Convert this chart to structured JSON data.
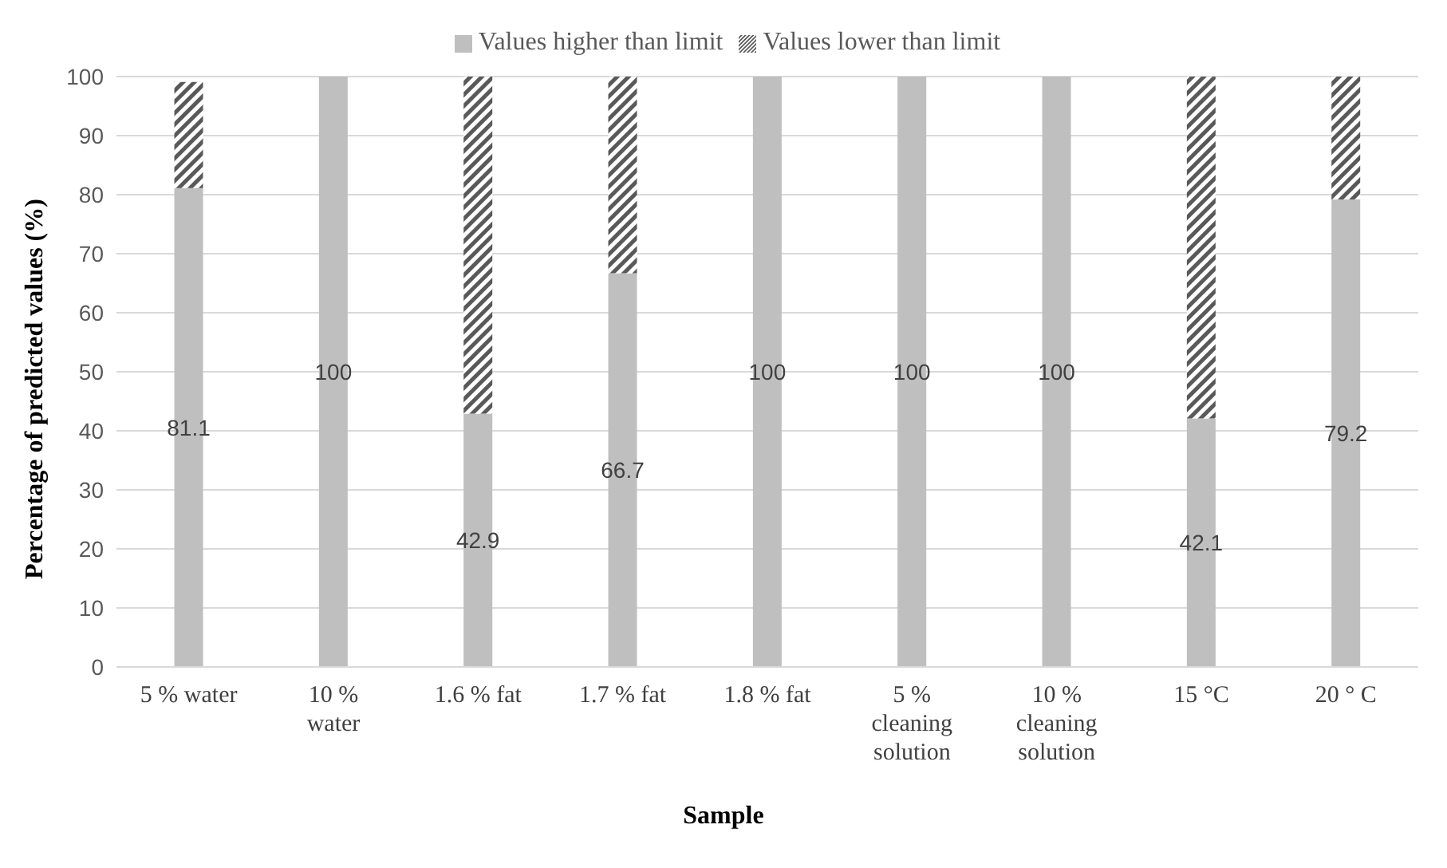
{
  "chart_data": {
    "type": "bar",
    "stacked": true,
    "xlabel": "Sample",
    "ylabel": "Percentage of predicted values (%)",
    "categories": [
      "5 % water",
      "10 % water",
      "1.6 % fat",
      "1.7 % fat",
      "1.8 % fat",
      "5 % cleaning solution",
      "10 % cleaning solution",
      "15 °C",
      "20 ° C"
    ],
    "series": [
      {
        "name": "Values higher than limit",
        "color": "#bfbfbf",
        "values": [
          81.1,
          100,
          42.9,
          66.7,
          100,
          100,
          100,
          42.1,
          79.2
        ],
        "value_labels": [
          "81.1",
          "100",
          "42.9",
          "66.7",
          "100",
          "100",
          "100",
          "42.1",
          "79.2"
        ]
      },
      {
        "name": "Values lower than limit",
        "color": "#595959",
        "values": [
          18,
          null,
          57.1,
          33.3,
          null,
          null,
          null,
          57.9,
          20.8
        ]
      }
    ],
    "ylim": [
      0,
      100
    ],
    "yticks": [
      0,
      10,
      20,
      30,
      40,
      50,
      60,
      70,
      80,
      90,
      100
    ],
    "grid": "y",
    "legend": "top"
  }
}
